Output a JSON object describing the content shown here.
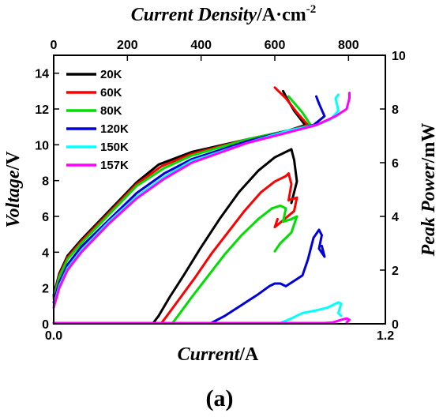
{
  "chart_data": {
    "type": "line",
    "panel_label": "(a)",
    "bottom_axis": {
      "label_italic": "Current",
      "label_unit": "/A",
      "range": [
        0,
        1.2
      ],
      "ticks": [
        0,
        1.2
      ],
      "tick_labels": [
        "0.0",
        "1.2"
      ]
    },
    "top_axis": {
      "label_italic": "Current Density",
      "label_unit": "/A·cm",
      "label_sup": "-2",
      "range": [
        0,
        900
      ],
      "ticks": [
        0,
        200,
        400,
        600,
        800
      ],
      "tick_labels": [
        "0",
        "200",
        "400",
        "600",
        "800"
      ]
    },
    "left_axis": {
      "label_italic": "Voltage",
      "label_unit": "/V",
      "range": [
        0,
        15
      ],
      "ticks": [
        0,
        2,
        4,
        6,
        8,
        10,
        12,
        14
      ],
      "tick_labels": [
        "0",
        "2",
        "4",
        "6",
        "8",
        "10",
        "12",
        "14"
      ]
    },
    "right_axis": {
      "label_italic": "Peak Power",
      "label_unit": "/mW",
      "range": [
        0,
        10
      ],
      "ticks": [
        0,
        2,
        4,
        6,
        8,
        10
      ],
      "tick_labels": [
        "0",
        "2",
        "4",
        "6",
        "8",
        "10"
      ]
    },
    "legend_position": "top-left",
    "series": [
      {
        "name": "20K",
        "color": "#000000",
        "voltage": [
          [
            0,
            1.6
          ],
          [
            0.02,
            2.8
          ],
          [
            0.05,
            3.8
          ],
          [
            0.1,
            4.7
          ],
          [
            0.2,
            6.3
          ],
          [
            0.3,
            7.9
          ],
          [
            0.38,
            8.9
          ],
          [
            0.5,
            9.6
          ],
          [
            0.7,
            10.3
          ],
          [
            0.85,
            10.8
          ],
          [
            0.91,
            11.1
          ],
          [
            0.87,
            11.9
          ],
          [
            0.84,
            12.7
          ],
          [
            0.83,
            13.0
          ]
        ],
        "power": [
          [
            0,
            0
          ],
          [
            0.36,
            0
          ],
          [
            0.38,
            0.3
          ],
          [
            0.42,
            1.0
          ],
          [
            0.47,
            1.8
          ],
          [
            0.53,
            2.8
          ],
          [
            0.6,
            3.9
          ],
          [
            0.67,
            4.9
          ],
          [
            0.74,
            5.7
          ],
          [
            0.8,
            6.2
          ],
          [
            0.84,
            6.4
          ],
          [
            0.86,
            6.5
          ],
          [
            0.87,
            6.1
          ],
          [
            0.88,
            5.3
          ],
          [
            0.86,
            4.5
          ]
        ]
      },
      {
        "name": "60K",
        "color": "#ff0000",
        "voltage": [
          [
            0,
            1.5
          ],
          [
            0.02,
            2.7
          ],
          [
            0.05,
            3.7
          ],
          [
            0.1,
            4.6
          ],
          [
            0.2,
            6.2
          ],
          [
            0.3,
            7.8
          ],
          [
            0.39,
            8.8
          ],
          [
            0.5,
            9.5
          ],
          [
            0.7,
            10.3
          ],
          [
            0.85,
            10.8
          ],
          [
            0.92,
            11.1
          ],
          [
            0.88,
            11.8
          ],
          [
            0.84,
            12.6
          ],
          [
            0.8,
            13.2
          ]
        ],
        "power": [
          [
            0,
            0
          ],
          [
            0.39,
            0
          ],
          [
            0.41,
            0.3
          ],
          [
            0.46,
            1.0
          ],
          [
            0.51,
            1.7
          ],
          [
            0.57,
            2.6
          ],
          [
            0.63,
            3.4
          ],
          [
            0.69,
            4.2
          ],
          [
            0.75,
            4.9
          ],
          [
            0.8,
            5.3
          ],
          [
            0.84,
            5.5
          ],
          [
            0.85,
            5.6
          ],
          [
            0.86,
            5.2
          ],
          [
            0.85,
            4.6
          ],
          [
            0.88,
            4.7
          ],
          [
            0.87,
            4.2
          ],
          [
            0.8,
            3.6
          ],
          [
            0.81,
            3.9
          ]
        ]
      },
      {
        "name": "80K",
        "color": "#00dd00",
        "voltage": [
          [
            0,
            1.4
          ],
          [
            0.02,
            2.6
          ],
          [
            0.05,
            3.6
          ],
          [
            0.1,
            4.5
          ],
          [
            0.2,
            6.1
          ],
          [
            0.3,
            7.7
          ],
          [
            0.4,
            8.7
          ],
          [
            0.5,
            9.4
          ],
          [
            0.7,
            10.3
          ],
          [
            0.85,
            10.8
          ],
          [
            0.93,
            11.1
          ],
          [
            0.9,
            11.8
          ],
          [
            0.85,
            12.7
          ]
        ],
        "power": [
          [
            0,
            0
          ],
          [
            0.43,
            0
          ],
          [
            0.45,
            0.3
          ],
          [
            0.5,
            1.0
          ],
          [
            0.56,
            1.8
          ],
          [
            0.62,
            2.6
          ],
          [
            0.68,
            3.3
          ],
          [
            0.74,
            3.9
          ],
          [
            0.79,
            4.3
          ],
          [
            0.82,
            4.4
          ],
          [
            0.84,
            4.3
          ],
          [
            0.83,
            3.8
          ],
          [
            0.86,
            3.9
          ],
          [
            0.88,
            4.0
          ],
          [
            0.86,
            3.4
          ],
          [
            0.82,
            3.0
          ],
          [
            0.8,
            2.7
          ]
        ]
      },
      {
        "name": "120K",
        "color": "#0000dd",
        "voltage": [
          [
            0,
            1.2
          ],
          [
            0.02,
            2.3
          ],
          [
            0.05,
            3.3
          ],
          [
            0.1,
            4.3
          ],
          [
            0.2,
            5.8
          ],
          [
            0.3,
            7.3
          ],
          [
            0.4,
            8.4
          ],
          [
            0.5,
            9.2
          ],
          [
            0.7,
            10.2
          ],
          [
            0.85,
            10.8
          ],
          [
            0.94,
            11.1
          ],
          [
            0.98,
            11.6
          ],
          [
            0.96,
            12.3
          ],
          [
            0.95,
            12.7
          ]
        ],
        "power": [
          [
            0,
            0
          ],
          [
            0.57,
            0
          ],
          [
            0.62,
            0.3
          ],
          [
            0.68,
            0.7
          ],
          [
            0.74,
            1.1
          ],
          [
            0.78,
            1.4
          ],
          [
            0.8,
            1.5
          ],
          [
            0.82,
            1.5
          ],
          [
            0.84,
            1.4
          ],
          [
            0.87,
            1.6
          ],
          [
            0.9,
            1.8
          ],
          [
            0.92,
            2.4
          ],
          [
            0.94,
            3.2
          ],
          [
            0.96,
            3.5
          ],
          [
            0.97,
            3.3
          ],
          [
            0.96,
            2.8
          ],
          [
            0.98,
            2.5
          ],
          [
            0.97,
            2.9
          ]
        ]
      },
      {
        "name": "150K",
        "color": "#00ffff",
        "voltage": [
          [
            0,
            1.0
          ],
          [
            0.02,
            2.1
          ],
          [
            0.05,
            3.1
          ],
          [
            0.1,
            4.1
          ],
          [
            0.2,
            5.7
          ],
          [
            0.3,
            7.1
          ],
          [
            0.4,
            8.2
          ],
          [
            0.5,
            9.1
          ],
          [
            0.7,
            10.1
          ],
          [
            0.85,
            10.8
          ],
          [
            0.95,
            11.1
          ],
          [
            1.0,
            11.4
          ],
          [
            1.03,
            11.9
          ],
          [
            1.02,
            12.6
          ],
          [
            1.03,
            12.8
          ]
        ],
        "power": [
          [
            0,
            0
          ],
          [
            0.82,
            0
          ],
          [
            0.86,
            0.2
          ],
          [
            0.9,
            0.4
          ],
          [
            0.95,
            0.5
          ],
          [
            0.99,
            0.6
          ],
          [
            1.03,
            0.8
          ],
          [
            1.04,
            0.75
          ],
          [
            1.03,
            0.4
          ],
          [
            1.04,
            0.3
          ]
        ]
      },
      {
        "name": "157K",
        "color": "#ff00ff",
        "voltage": [
          [
            0,
            0.9
          ],
          [
            0.02,
            2.0
          ],
          [
            0.05,
            3.0
          ],
          [
            0.1,
            4.0
          ],
          [
            0.2,
            5.6
          ],
          [
            0.3,
            7.0
          ],
          [
            0.4,
            8.1
          ],
          [
            0.5,
            9.0
          ],
          [
            0.7,
            10.1
          ],
          [
            0.85,
            10.7
          ],
          [
            0.95,
            11.1
          ],
          [
            1.02,
            11.6
          ],
          [
            1.06,
            12.0
          ],
          [
            1.07,
            12.6
          ],
          [
            1.07,
            12.9
          ]
        ],
        "power": [
          [
            0,
            0
          ],
          [
            0.98,
            0
          ],
          [
            1.01,
            0.05
          ],
          [
            1.04,
            0.15
          ],
          [
            1.06,
            0.2
          ],
          [
            1.07,
            0.15
          ],
          [
            1.06,
            0.05
          ]
        ]
      }
    ]
  }
}
